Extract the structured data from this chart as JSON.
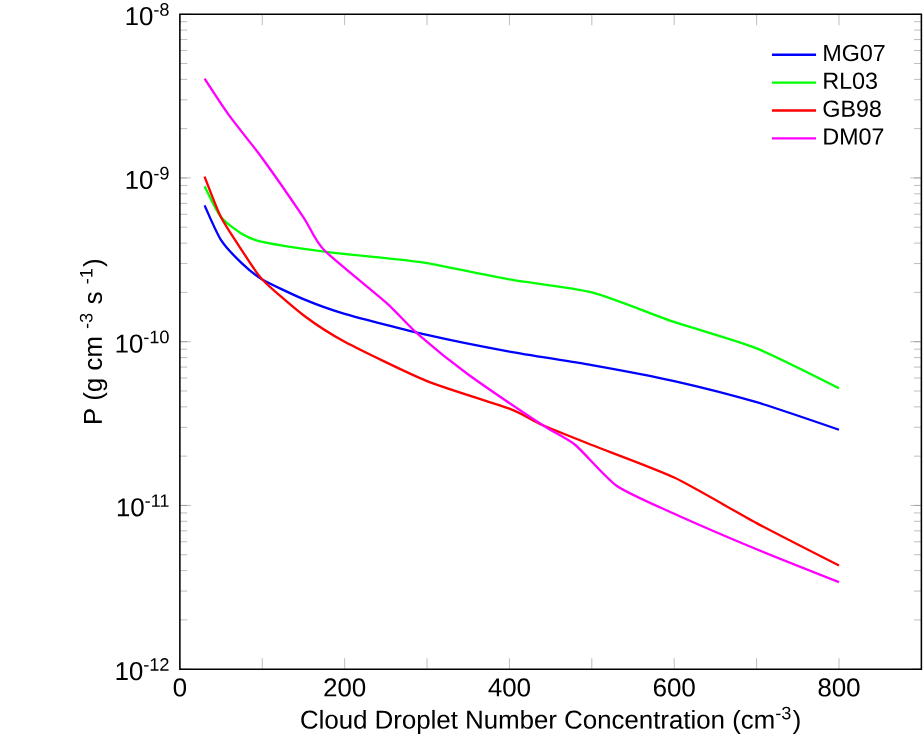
{
  "chart_data": {
    "type": "line",
    "xlabel": "Cloud Droplet Number Concentration (cm$^{-3}$)",
    "ylabel": "P (g cm $^{-3}$ s $^{-1}$)",
    "log": "y",
    "grid": false,
    "legend": "top right",
    "marker": "none",
    "line_style": "solid",
    "xlim": [
      0,
      900
    ],
    "ylim": [
      1e-12,
      1e-08
    ],
    "xticks": [
      0,
      {
        "value": 100,
        "label": null
      },
      200,
      {
        "value": 300,
        "label": null
      },
      400,
      {
        "value": 500,
        "label": null
      },
      600,
      {
        "value": 700,
        "label": null
      },
      800
    ],
    "yticks": [
      {
        "value": 1e-12,
        "label": "10$^{-12}$"
      },
      {
        "value": 1e-11,
        "label": "10$^{-11}$"
      },
      {
        "value": 1e-10,
        "label": "10$^{-10}$"
      },
      {
        "value": 1e-09,
        "label": "10$^{-9}$"
      },
      {
        "value": 1e-08,
        "label": "10$^{-8}$"
      }
    ],
    "series": [
      {
        "name": "MG07",
        "color": "#0000ff",
        "x": [
          30,
          50,
          75,
          100,
          150,
          200,
          300,
          400,
          500,
          600,
          700,
          800
        ],
        "values": [
          6.8e-10,
          4.17e-10,
          3.02e-10,
          2.4e-10,
          1.82e-10,
          1.48e-10,
          1.1e-10,
          8.7e-11,
          7.2e-11,
          5.75e-11,
          4.27e-11,
          2.9e-11
        ]
      },
      {
        "name": "RL03",
        "color": "#00ff00",
        "x": [
          30,
          50,
          75,
          100,
          175,
          250,
          300,
          400,
          500,
          600,
          700,
          800
        ],
        "values": [
          8.9e-10,
          5.75e-10,
          4.57e-10,
          4.07e-10,
          3.55e-10,
          3.24e-10,
          3.02e-10,
          2.4e-10,
          2e-10,
          1.32e-10,
          9.1e-11,
          5.2e-11
        ]
      },
      {
        "name": "GB98",
        "color": "#ff0000",
        "x": [
          30,
          50,
          75,
          100,
          150,
          200,
          300,
          400,
          440,
          500,
          600,
          700,
          800
        ],
        "values": [
          1.02e-09,
          5.75e-10,
          3.63e-10,
          2.4e-10,
          1.45e-10,
          1e-10,
          5.75e-11,
          3.9e-11,
          3.1e-11,
          2.34e-11,
          1.48e-11,
          7.8e-12,
          4.3e-12
        ]
      },
      {
        "name": "DM07",
        "color": "#ff00ff",
        "x": [
          30,
          60,
          100,
          150,
          175,
          250,
          290,
          350,
          440,
          480,
          530,
          600,
          700,
          800
        ],
        "values": [
          4.04e-09,
          2.4e-09,
          1.32e-09,
          5.75e-10,
          3.63e-10,
          1.74e-10,
          1.1e-10,
          6.3e-11,
          3.1e-11,
          2.34e-11,
          1.32e-11,
          8.9e-12,
          5.4e-12,
          3.4e-12
        ]
      }
    ]
  }
}
